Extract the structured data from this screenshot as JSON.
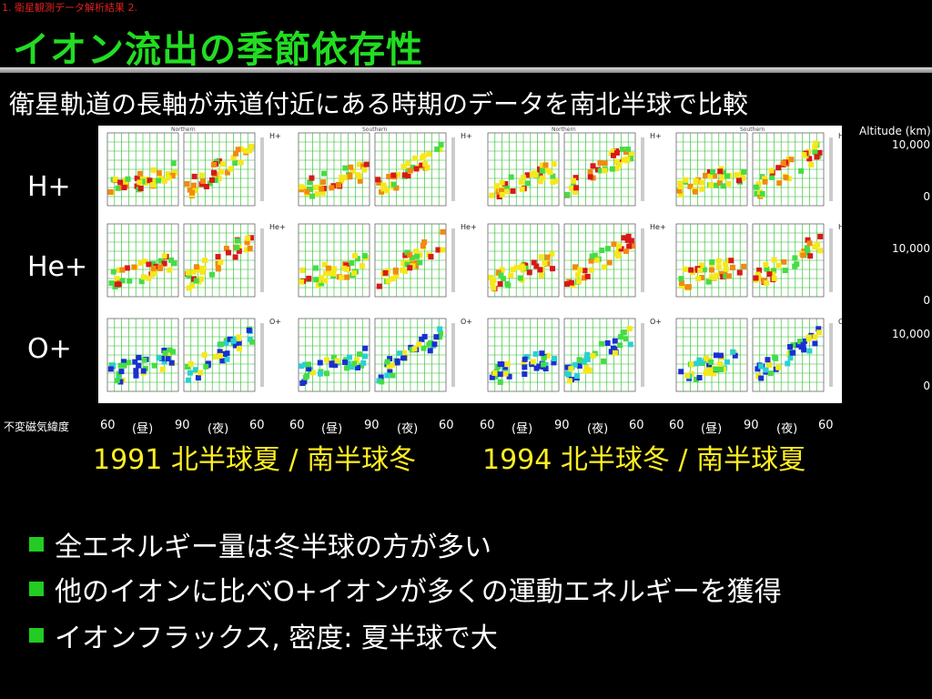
{
  "breadcrumb": "1. 衛星観測データ解析結果 2.",
  "title": "イオン流出の季節依存性",
  "subtitle": "衛星軌道の長軸が赤道付近にある時期のデータを南北半球で比較",
  "ion_labels": [
    "H+",
    "He+",
    "O+"
  ],
  "figure": {
    "hemisphere_labels": [
      "Northern",
      "Southern",
      "Northern",
      "Southern"
    ],
    "species_tags": [
      "H+",
      "He+",
      "O+"
    ],
    "colors": {
      "grid": "#22bb22",
      "blue": "#1a2fd0",
      "cyan": "#2ad0d0",
      "green": "#44dd44",
      "yellow": "#f5e81a",
      "orange": "#f08a10",
      "red": "#d81818"
    }
  },
  "altitude": {
    "header": "Altitude (km)",
    "ticks": [
      {
        "label": "10,000"
      },
      {
        "label": "0"
      },
      {
        "label": "10,000"
      },
      {
        "label": "0"
      },
      {
        "label": "10,000"
      },
      {
        "label": "0"
      }
    ]
  },
  "mlat": {
    "label": "不変磁気緯度",
    "ticks": [
      "60",
      "(昼)",
      "90",
      "(夜)",
      "60",
      "60",
      "(昼)",
      "90",
      "(夜)",
      "60",
      "60",
      "(昼)",
      "90",
      "(夜)",
      "60",
      "60",
      "(昼)",
      "90",
      "(夜)",
      "60"
    ]
  },
  "seasons": [
    "1991 北半球夏 / 南半球冬",
    "1994 北半球冬 / 南半球夏"
  ],
  "bullets": [
    "全エネルギー量は冬半球の方が多い",
    "他のイオンに比べO+イオンが多くの運動エネルギーを獲得",
    "イオンフラックス, 密度: 夏半球で大"
  ]
}
